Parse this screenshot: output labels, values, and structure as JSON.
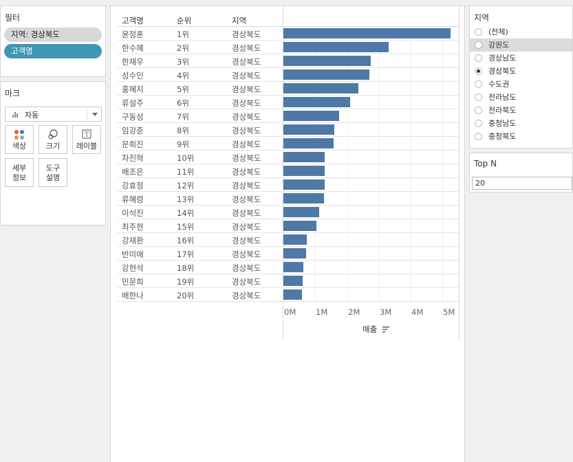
{
  "filters": {
    "title": "필터",
    "pills": [
      {
        "label": "지역: 경상북도",
        "style": "grey"
      },
      {
        "label": "고객명",
        "style": "teal"
      }
    ]
  },
  "marks": {
    "title": "마크",
    "type_dropdown": "자동",
    "buttons": [
      {
        "label": "색상",
        "icon": "color-icon"
      },
      {
        "label": "크기",
        "icon": "size-icon"
      },
      {
        "label": "레이블",
        "icon": "label-icon"
      },
      {
        "label": "세부\n정보",
        "icon": null
      },
      {
        "label": "도구\n설명",
        "icon": null
      }
    ]
  },
  "table": {
    "headers": [
      "고객명",
      "순위",
      "지역"
    ],
    "rows": [
      {
        "name": "윤정훈",
        "rank": "1위",
        "region": "경상북도"
      },
      {
        "name": "한수혜",
        "rank": "2위",
        "region": "경상북도"
      },
      {
        "name": "한재우",
        "rank": "3위",
        "region": "경상북도"
      },
      {
        "name": "성수인",
        "rank": "4위",
        "region": "경상북도"
      },
      {
        "name": "홍혜지",
        "rank": "5위",
        "region": "경상북도"
      },
      {
        "name": "류설주",
        "rank": "6위",
        "region": "경상북도"
      },
      {
        "name": "구동성",
        "rank": "7위",
        "region": "경상북도"
      },
      {
        "name": "임강준",
        "rank": "8위",
        "region": "경상북도"
      },
      {
        "name": "문희진",
        "rank": "9위",
        "region": "경상북도"
      },
      {
        "name": "차진혁",
        "rank": "10위",
        "region": "경상북도"
      },
      {
        "name": "배조은",
        "rank": "11위",
        "region": "경상북도"
      },
      {
        "name": "강효정",
        "rank": "12위",
        "region": "경상북도"
      },
      {
        "name": "류혜령",
        "rank": "13위",
        "region": "경상북도"
      },
      {
        "name": "이석진",
        "rank": "14위",
        "region": "경상북도"
      },
      {
        "name": "최주현",
        "rank": "15위",
        "region": "경상북도"
      },
      {
        "name": "강재환",
        "rank": "16위",
        "region": "경상북도"
      },
      {
        "name": "반미애",
        "rank": "17위",
        "region": "경상북도"
      },
      {
        "name": "강현석",
        "rank": "18위",
        "region": "경상북도"
      },
      {
        "name": "민문희",
        "rank": "19위",
        "region": "경상북도"
      },
      {
        "name": "배한나",
        "rank": "20위",
        "region": "경상북도"
      }
    ]
  },
  "chart_data": {
    "type": "bar",
    "orientation": "horizontal",
    "categories": [
      "윤정훈",
      "한수혜",
      "한재우",
      "성수인",
      "홍혜지",
      "류설주",
      "구동성",
      "임강준",
      "문희진",
      "차진혁",
      "배조은",
      "강효정",
      "류혜령",
      "이석진",
      "최주현",
      "강재환",
      "반미애",
      "강현석",
      "민문희",
      "배한나"
    ],
    "values": [
      5.25,
      3.3,
      2.75,
      2.7,
      2.35,
      2.1,
      1.75,
      1.6,
      1.57,
      1.3,
      1.29,
      1.29,
      1.27,
      1.12,
      1.03,
      0.73,
      0.72,
      0.62,
      0.6,
      0.58
    ],
    "value_unit": "M",
    "xlabel": "매출",
    "xticks": [
      "0M",
      "1M",
      "2M",
      "3M",
      "4M",
      "5M"
    ],
    "xlim": [
      0,
      5.4
    ],
    "bar_color": "#4e79a7"
  },
  "region_filter": {
    "title": "지역",
    "options": [
      "(전체)",
      "강원도",
      "경상남도",
      "경상북도",
      "수도권",
      "전라남도",
      "전라북도",
      "충청남도",
      "충청북도"
    ],
    "selected": "경상북도",
    "highlighted": "강원도"
  },
  "topn": {
    "title": "Top N",
    "value": "20"
  }
}
